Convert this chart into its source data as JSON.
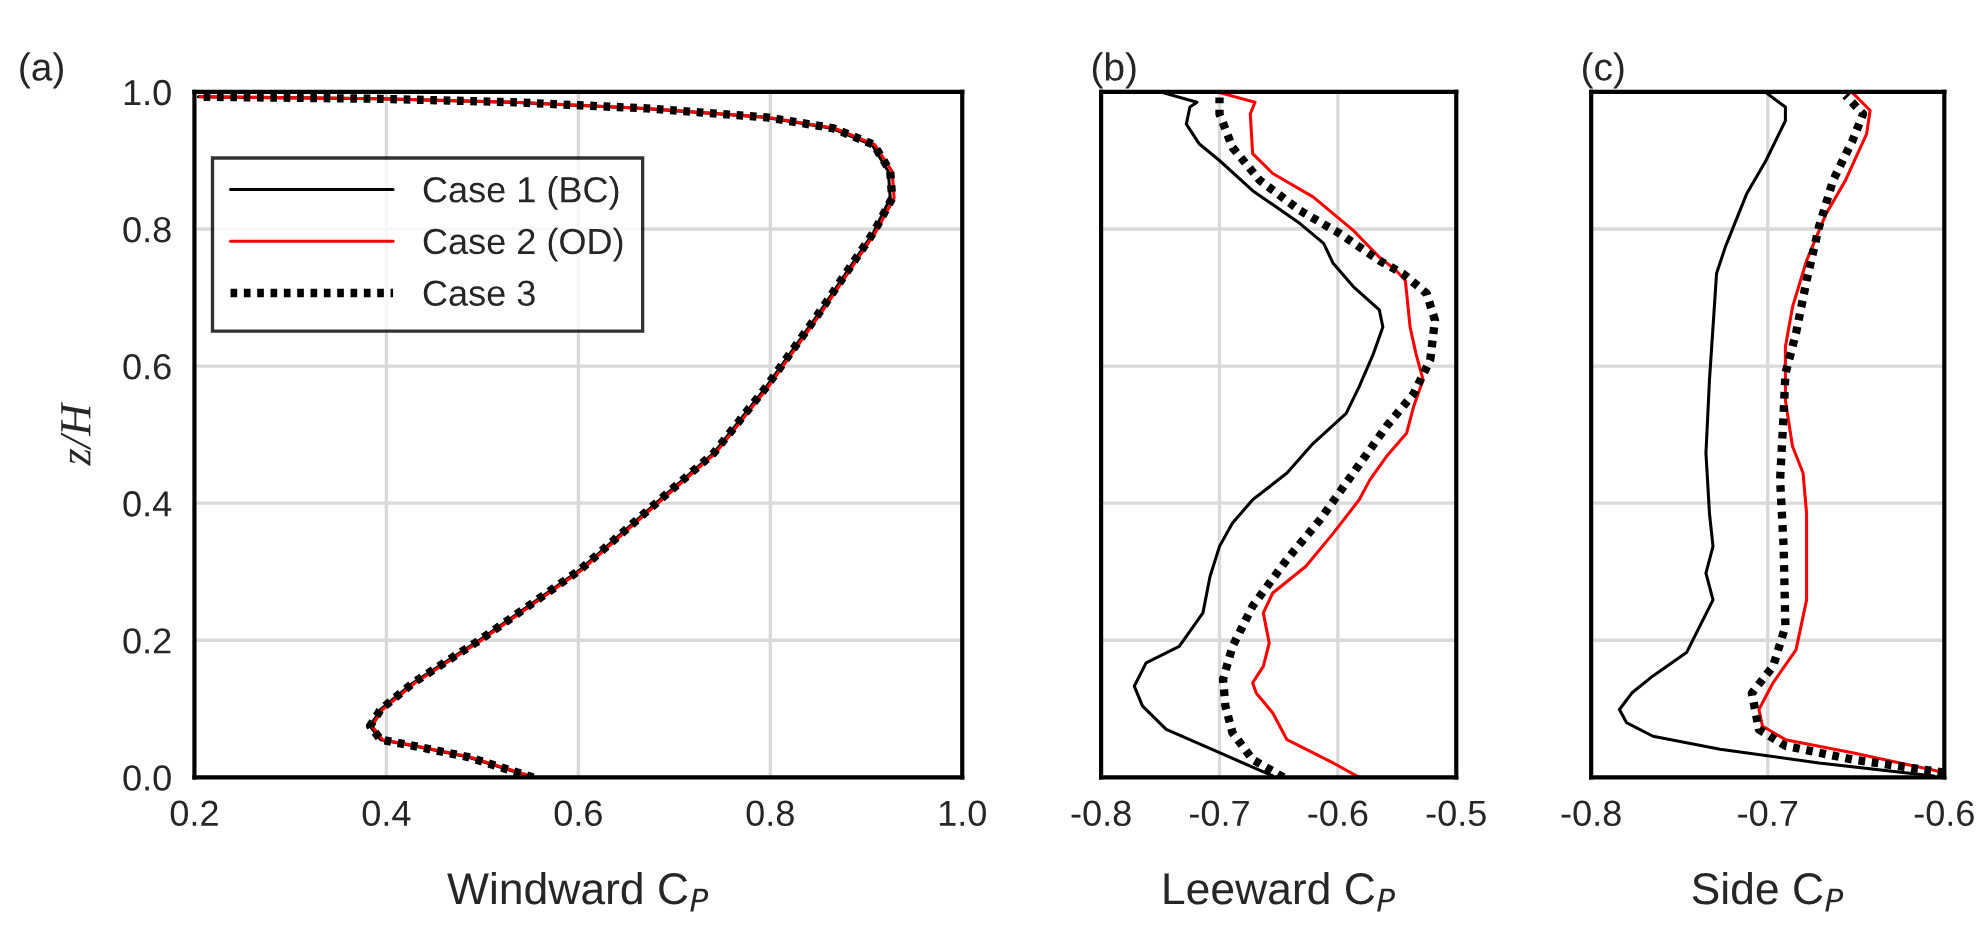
{
  "chart_data": [
    {
      "type": "line",
      "title": "(a)",
      "xlabel": "Windward C$_{P}$",
      "ylabel": "z/H",
      "xlim": [
        0.2,
        1.0
      ],
      "ylim": [
        0,
        1
      ],
      "xticks": [
        0.2,
        0.4,
        0.6,
        0.8,
        {
          "value": 1.0,
          "label": "1.0"
        }
      ],
      "yticks": [
        {
          "value": 0,
          "label": "0.0"
        },
        0.2,
        0.4,
        0.6,
        0.8,
        {
          "value": 1,
          "label": "1.0"
        }
      ],
      "grid": true,
      "legend": "top left",
      "marker": "none",
      "series": [
        {
          "name": "Case 1 (BC)",
          "color": "#000000",
          "line_style": "solid",
          "x": [
            0.553,
            0.484,
            0.428,
            0.394,
            0.383,
            0.394,
            0.428,
            0.498,
            0.602,
            0.685,
            0.741,
            0.796,
            0.852,
            0.908,
            0.925,
            0.923,
            0.906,
            0.864,
            0.794,
            0.669,
            0.531,
            0.392,
            0.204
          ],
          "values": [
            0,
            0.03,
            0.046,
            0.055,
            0.075,
            0.099,
            0.138,
            0.201,
            0.303,
            0.405,
            0.473,
            0.57,
            0.68,
            0.796,
            0.845,
            0.884,
            0.923,
            0.947,
            0.963,
            0.976,
            0.985,
            0.99,
            0.993
          ]
        },
        {
          "name": "Case 2 (OD)",
          "color": "#ff0000",
          "line_style": "solid",
          "x": [
            0.555,
            0.486,
            0.43,
            0.396,
            0.385,
            0.396,
            0.43,
            0.5,
            0.604,
            0.687,
            0.743,
            0.798,
            0.854,
            0.91,
            0.929,
            0.927,
            0.909,
            0.867,
            0.797,
            0.672,
            0.534,
            0.395,
            0.206
          ],
          "values": [
            0,
            0.03,
            0.046,
            0.055,
            0.075,
            0.099,
            0.138,
            0.201,
            0.303,
            0.405,
            0.473,
            0.57,
            0.68,
            0.796,
            0.845,
            0.884,
            0.923,
            0.947,
            0.963,
            0.976,
            0.985,
            0.99,
            0.993
          ]
        },
        {
          "name": "Case 3",
          "color": "#000000",
          "line_style": "dotted",
          "x": [
            0.553,
            0.484,
            0.428,
            0.394,
            0.383,
            0.394,
            0.428,
            0.498,
            0.602,
            0.685,
            0.741,
            0.796,
            0.852,
            0.908,
            0.927,
            0.925,
            0.908,
            0.866,
            0.796,
            0.671,
            0.533,
            0.394,
            0.206
          ],
          "values": [
            0,
            0.03,
            0.046,
            0.055,
            0.075,
            0.099,
            0.138,
            0.201,
            0.303,
            0.405,
            0.473,
            0.57,
            0.68,
            0.796,
            0.845,
            0.884,
            0.923,
            0.947,
            0.963,
            0.976,
            0.985,
            0.99,
            0.993
          ]
        }
      ]
    },
    {
      "type": "line",
      "title": "(b)",
      "xlabel": "Leeward C$_{P}$",
      "xlim": [
        -0.8,
        -0.5
      ],
      "ylim": [
        0,
        1
      ],
      "xticks": [
        -0.8,
        -0.7,
        -0.6,
        -0.5
      ],
      "yticks": [
        {
          "value": 0,
          "label": null
        },
        {
          "value": 0.2,
          "label": null
        },
        {
          "value": 0.4,
          "label": null
        },
        {
          "value": 0.6,
          "label": null
        },
        {
          "value": 0.8,
          "label": null
        },
        {
          "value": 1,
          "label": null
        }
      ],
      "tick_labels": "x",
      "grid": true,
      "marker": "none",
      "series": [
        {
          "color": "#000000",
          "line_style": "solid",
          "x": [
            -0.655,
            -0.7,
            -0.745,
            -0.765,
            -0.772,
            -0.762,
            -0.734,
            -0.714,
            -0.708,
            -0.7,
            -0.689,
            -0.672,
            -0.643,
            -0.621,
            -0.593,
            -0.582,
            -0.57,
            -0.562,
            -0.565,
            -0.587,
            -0.604,
            -0.612,
            -0.632,
            -0.672,
            -0.7,
            -0.717,
            -0.728,
            -0.725,
            -0.719,
            -0.748
          ],
          "values": [
            0.002,
            0.036,
            0.07,
            0.104,
            0.133,
            0.167,
            0.191,
            0.24,
            0.293,
            0.337,
            0.371,
            0.405,
            0.444,
            0.487,
            0.531,
            0.57,
            0.618,
            0.657,
            0.682,
            0.716,
            0.75,
            0.779,
            0.808,
            0.856,
            0.9,
            0.924,
            0.953,
            0.978,
            0.985,
            0.999
          ]
        },
        {
          "color": "#ff0000",
          "line_style": "solid",
          "x": [
            -0.582,
            -0.604,
            -0.643,
            -0.655,
            -0.669,
            -0.672,
            -0.663,
            -0.658,
            -0.663,
            -0.655,
            -0.627,
            -0.604,
            -0.582,
            -0.573,
            -0.559,
            -0.542,
            -0.536,
            -0.528,
            -0.534,
            -0.539,
            -0.543,
            -0.551,
            -0.565,
            -0.587,
            -0.621,
            -0.655,
            -0.672,
            -0.674,
            -0.67,
            -0.7
          ],
          "values": [
            0,
            0.021,
            0.055,
            0.094,
            0.123,
            0.138,
            0.162,
            0.196,
            0.24,
            0.269,
            0.308,
            0.356,
            0.405,
            0.434,
            0.468,
            0.502,
            0.541,
            0.58,
            0.618,
            0.657,
            0.725,
            0.74,
            0.759,
            0.798,
            0.847,
            0.881,
            0.91,
            0.968,
            0.985,
            0.999
          ]
        },
        {
          "color": "#000000",
          "line_style": "dotted",
          "x": [
            -0.646,
            -0.672,
            -0.689,
            -0.695,
            -0.697,
            -0.689,
            -0.672,
            -0.643,
            -0.615,
            -0.587,
            -0.559,
            -0.536,
            -0.522,
            -0.518,
            -0.525,
            -0.545,
            -0.565,
            -0.598,
            -0.632,
            -0.666,
            -0.689,
            -0.7,
            -0.7
          ],
          "values": [
            0,
            0.026,
            0.065,
            0.104,
            0.143,
            0.191,
            0.25,
            0.318,
            0.376,
            0.444,
            0.512,
            0.56,
            0.609,
            0.667,
            0.706,
            0.735,
            0.754,
            0.793,
            0.827,
            0.871,
            0.919,
            0.968,
            0.992
          ]
        }
      ]
    },
    {
      "type": "line",
      "title": "(c)",
      "xlabel": "Side C$_{P}$",
      "xlim": [
        -0.8,
        -0.6
      ],
      "ylim": [
        0,
        1
      ],
      "xticks": [
        -0.8,
        -0.7,
        -0.6
      ],
      "yticks": [
        {
          "value": 0,
          "label": null
        },
        {
          "value": 0.2,
          "label": null
        },
        {
          "value": 0.4,
          "label": null
        },
        {
          "value": 0.6,
          "label": null
        },
        {
          "value": 0.8,
          "label": null
        },
        {
          "value": 1,
          "label": null
        }
      ],
      "tick_labels": "x",
      "grid": true,
      "marker": "none",
      "series": [
        {
          "color": "#000000",
          "line_style": "solid",
          "x": [
            -0.606,
            -0.671,
            -0.727,
            -0.765,
            -0.78,
            -0.784,
            -0.777,
            -0.765,
            -0.746,
            -0.731,
            -0.735,
            -0.731,
            -0.733,
            -0.735,
            -0.733,
            -0.731,
            -0.729,
            -0.724,
            -0.712,
            -0.701,
            -0.69,
            -0.69,
            -0.701
          ],
          "values": [
            0.002,
            0.021,
            0.041,
            0.06,
            0.08,
            0.099,
            0.123,
            0.148,
            0.182,
            0.259,
            0.298,
            0.337,
            0.385,
            0.473,
            0.58,
            0.657,
            0.735,
            0.774,
            0.851,
            0.9,
            0.958,
            0.978,
            0.999
          ]
        },
        {
          "color": "#ff0000",
          "line_style": "solid",
          "x": [
            -0.6,
            -0.652,
            -0.69,
            -0.703,
            -0.705,
            -0.697,
            -0.684,
            -0.678,
            -0.678,
            -0.68,
            -0.686,
            -0.69,
            -0.69,
            -0.686,
            -0.678,
            -0.667,
            -0.656,
            -0.644,
            -0.642,
            -0.652
          ],
          "values": [
            0.007,
            0.036,
            0.055,
            0.075,
            0.099,
            0.138,
            0.186,
            0.259,
            0.385,
            0.444,
            0.483,
            0.55,
            0.628,
            0.686,
            0.754,
            0.822,
            0.871,
            0.939,
            0.973,
            0.999
          ]
        },
        {
          "color": "#000000",
          "line_style": "dotted",
          "x": [
            -0.6,
            -0.652,
            -0.69,
            -0.705,
            -0.709,
            -0.697,
            -0.69,
            -0.691,
            -0.693,
            -0.691,
            -0.69,
            -0.684,
            -0.678,
            -0.671,
            -0.663,
            -0.652,
            -0.646,
            -0.656
          ],
          "values": [
            0.007,
            0.026,
            0.046,
            0.07,
            0.123,
            0.162,
            0.22,
            0.337,
            0.434,
            0.531,
            0.589,
            0.648,
            0.725,
            0.803,
            0.871,
            0.929,
            0.968,
            0.995
          ]
        }
      ]
    }
  ]
}
